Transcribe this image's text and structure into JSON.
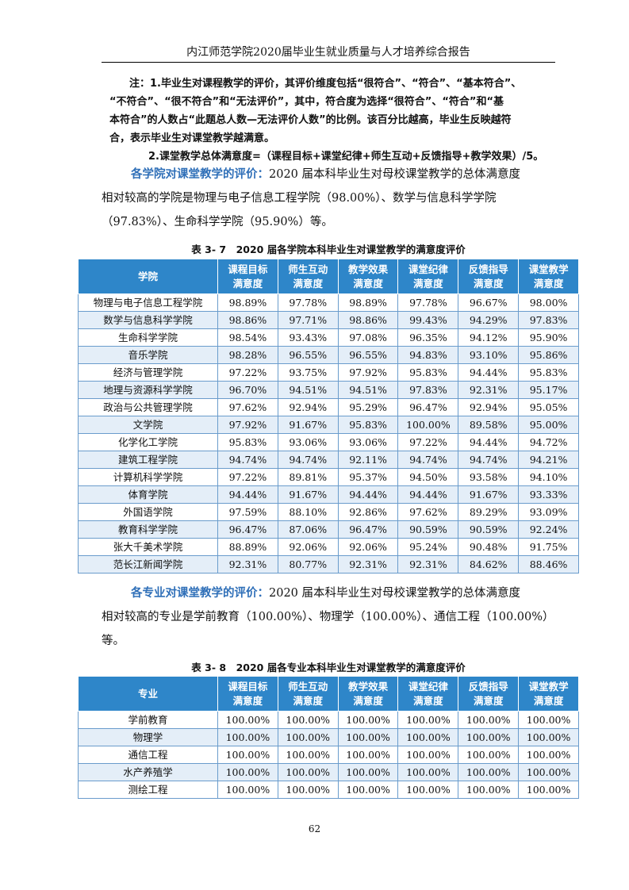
{
  "header": {
    "title": "内江师范学院2020届毕业生就业质量与人才培养综合报告"
  },
  "notes": {
    "note1_line1": "注：1.毕业生对课程教学的评价，其评价维度包括“很符合”、“符合”、“基本符合”、",
    "note1_line2": "“不符合”、“很不符合”和“无法评价”，其中，符合度为选择“很符合”、“符合”和“基",
    "note1_line3": "本符合”的人数占“此题总人数—无法评价人数”的比例。该百分比越高，毕业生反映越符",
    "note1_line4": "合，表示毕业生对课堂教学越满意。",
    "note2": "2.课堂教学总体满意度=（课程目标+课堂纪律+师生互动+反馈指导+教学效果）/5。"
  },
  "college_paragraph": {
    "highlight": "各学院对课堂教学的评价：",
    "line1_rest": "2020 届本科毕业生对母校课堂教学的总体满意度",
    "line2": "相对较高的学院是物理与电子信息工程学院（98.00%）、数学与信息科学学院",
    "line3": "（97.83%）、生命科学学院（95.90%）等。"
  },
  "table1": {
    "caption": "表 3- 7　2020 届各学院本科毕业生对课堂教学的满意度评价",
    "first_header": "学院",
    "headers": [
      [
        "课程目标",
        "满意度"
      ],
      [
        "师生互动",
        "满意度"
      ],
      [
        "教学效果",
        "满意度"
      ],
      [
        "课堂纪律",
        "满意度"
      ],
      [
        "反馈指导",
        "满意度"
      ],
      [
        "课堂教学",
        "满意度"
      ]
    ],
    "rows": [
      [
        "物理与电子信息工程学院",
        "98.89%",
        "97.78%",
        "98.89%",
        "97.78%",
        "96.67%",
        "98.00%"
      ],
      [
        "数学与信息科学学院",
        "98.86%",
        "97.71%",
        "98.86%",
        "99.43%",
        "94.29%",
        "97.83%"
      ],
      [
        "生命科学学院",
        "98.54%",
        "93.43%",
        "97.08%",
        "96.35%",
        "94.12%",
        "95.90%"
      ],
      [
        "音乐学院",
        "98.28%",
        "96.55%",
        "96.55%",
        "94.83%",
        "93.10%",
        "95.86%"
      ],
      [
        "经济与管理学院",
        "97.22%",
        "93.75%",
        "97.92%",
        "95.83%",
        "94.44%",
        "95.83%"
      ],
      [
        "地理与资源科学学院",
        "96.70%",
        "94.51%",
        "94.51%",
        "97.83%",
        "92.31%",
        "95.17%"
      ],
      [
        "政治与公共管理学院",
        "97.62%",
        "92.94%",
        "95.29%",
        "96.47%",
        "92.94%",
        "95.05%"
      ],
      [
        "文学院",
        "97.92%",
        "91.67%",
        "95.83%",
        "100.00%",
        "89.58%",
        "95.00%"
      ],
      [
        "化学化工学院",
        "95.83%",
        "93.06%",
        "93.06%",
        "97.22%",
        "94.44%",
        "94.72%"
      ],
      [
        "建筑工程学院",
        "94.74%",
        "94.74%",
        "92.11%",
        "94.74%",
        "94.74%",
        "94.21%"
      ],
      [
        "计算机科学学院",
        "97.22%",
        "89.81%",
        "95.37%",
        "94.50%",
        "93.58%",
        "94.10%"
      ],
      [
        "体育学院",
        "94.44%",
        "91.67%",
        "94.44%",
        "94.44%",
        "91.67%",
        "93.33%"
      ],
      [
        "外国语学院",
        "97.59%",
        "88.10%",
        "92.86%",
        "97.62%",
        "89.29%",
        "93.09%"
      ],
      [
        "教育科学学院",
        "96.47%",
        "87.06%",
        "96.47%",
        "90.59%",
        "90.59%",
        "92.24%"
      ],
      [
        "张大千美术学院",
        "88.89%",
        "92.06%",
        "92.06%",
        "95.24%",
        "90.48%",
        "91.75%"
      ],
      [
        "范长江新闻学院",
        "92.31%",
        "80.77%",
        "92.31%",
        "92.31%",
        "84.62%",
        "88.46%"
      ]
    ]
  },
  "major_paragraph": {
    "highlight": "各专业对课堂教学的评价：",
    "line1_rest": "2020 届本科毕业生对母校课堂教学的总体满意度",
    "line2": "相对较高的专业是学前教育（100.00%）、物理学（100.00%）、通信工程（100.00%）",
    "line3": "等。"
  },
  "table2": {
    "caption": "表 3- 8　2020 届各专业本科毕业生对课堂教学的满意度评价",
    "first_header": "专业",
    "headers": [
      [
        "课程目标",
        "满意度"
      ],
      [
        "师生互动",
        "满意度"
      ],
      [
        "教学效果",
        "满意度"
      ],
      [
        "课堂纪律",
        "满意度"
      ],
      [
        "反馈指导",
        "满意度"
      ],
      [
        "课堂教学",
        "满意度"
      ]
    ],
    "rows": [
      [
        "学前教育",
        "100.00%",
        "100.00%",
        "100.00%",
        "100.00%",
        "100.00%",
        "100.00%"
      ],
      [
        "物理学",
        "100.00%",
        "100.00%",
        "100.00%",
        "100.00%",
        "100.00%",
        "100.00%"
      ],
      [
        "通信工程",
        "100.00%",
        "100.00%",
        "100.00%",
        "100.00%",
        "100.00%",
        "100.00%"
      ],
      [
        "水产养殖学",
        "100.00%",
        "100.00%",
        "100.00%",
        "100.00%",
        "100.00%",
        "100.00%"
      ],
      [
        "测绘工程",
        "100.00%",
        "100.00%",
        "100.00%",
        "100.00%",
        "100.00%",
        "100.00%"
      ]
    ]
  },
  "page_number": "62"
}
